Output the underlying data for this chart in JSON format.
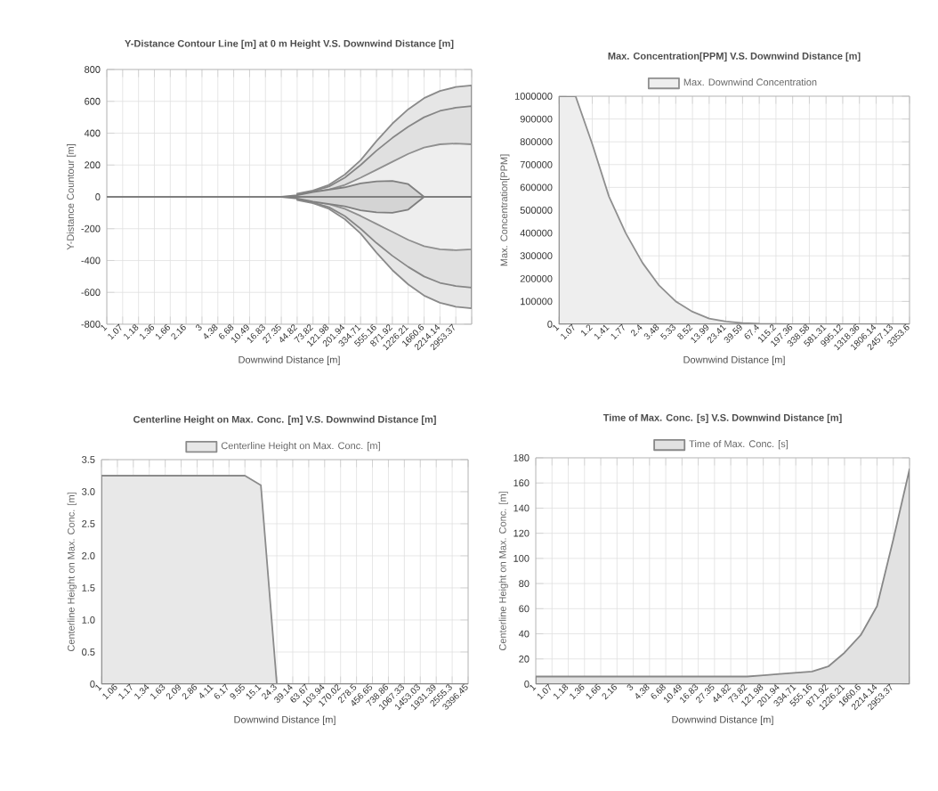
{
  "chart_data": [
    {
      "type": "area",
      "title": "Y-Distance Contour Line [m] at 0 m Height V.S. Downwind Distance [m]",
      "xlabel": "Downwind Distance [m]",
      "ylabel": "Y-Distance Countour [m]",
      "categories": [
        "1",
        "1.07",
        "1.18",
        "1.36",
        "1.66",
        "2.16",
        "3",
        "4.38",
        "6.68",
        "10.49",
        "16.83",
        "27.35",
        "44.82",
        "73.82",
        "121.98",
        "201.94",
        "334.71",
        "555.16",
        "871.92",
        "1226.21",
        "1660.6",
        "2214.14",
        "2953.37",
        null
      ],
      "series": [
        {
          "color": "#e6e6e6",
          "values": [
            null,
            null,
            null,
            null,
            null,
            null,
            null,
            null,
            null,
            null,
            null,
            null,
            20,
            40,
            75,
            140,
            230,
            350,
            460,
            550,
            620,
            665,
            690,
            700
          ]
        },
        {
          "color": "#e6e6e6",
          "values": [
            null,
            null,
            null,
            null,
            null,
            null,
            null,
            null,
            null,
            null,
            null,
            null,
            -20,
            -40,
            -75,
            -140,
            -230,
            -350,
            -460,
            -550,
            -620,
            -665,
            -690,
            -700
          ]
        },
        {
          "color": "#e0e0e0",
          "values": [
            null,
            null,
            null,
            null,
            null,
            null,
            null,
            null,
            null,
            null,
            null,
            null,
            15,
            35,
            65,
            120,
            200,
            290,
            370,
            440,
            500,
            540,
            560,
            570
          ]
        },
        {
          "color": "#e0e0e0",
          "values": [
            null,
            null,
            null,
            null,
            null,
            null,
            null,
            null,
            null,
            null,
            null,
            null,
            -15,
            -35,
            -65,
            -120,
            -200,
            -290,
            -370,
            -440,
            -500,
            -540,
            -560,
            -570
          ]
        },
        {
          "color": "#eeeeee",
          "values": [
            null,
            null,
            null,
            null,
            null,
            null,
            null,
            null,
            null,
            null,
            null,
            null,
            10,
            30,
            45,
            75,
            120,
            170,
            220,
            270,
            310,
            330,
            335,
            330
          ]
        },
        {
          "color": "#eeeeee",
          "values": [
            null,
            null,
            null,
            null,
            null,
            null,
            null,
            null,
            null,
            null,
            null,
            null,
            -10,
            -30,
            -45,
            -75,
            -120,
            -170,
            -220,
            -270,
            -310,
            -330,
            -335,
            -330
          ]
        },
        {
          "color": "#d4d4d4",
          "values": [
            null,
            null,
            null,
            null,
            null,
            null,
            null,
            null,
            null,
            null,
            null,
            0,
            10,
            30,
            45,
            60,
            85,
            97,
            100,
            80,
            0,
            null,
            null,
            null
          ]
        },
        {
          "color": "#d4d4d4",
          "values": [
            0,
            0,
            0,
            0,
            0,
            0,
            0,
            0,
            0,
            0,
            0,
            0,
            -10,
            -30,
            -45,
            -60,
            -85,
            -97,
            -100,
            -80,
            0,
            0,
            0,
            0
          ]
        }
      ],
      "ylim": [
        -800,
        800
      ],
      "yticks": [
        -800,
        -600,
        -400,
        -200,
        0,
        200,
        400,
        600,
        800
      ],
      "grid": true
    },
    {
      "type": "area",
      "title": "Max. Concentration[PPM] V.S. Downwind Distance [m]",
      "xlabel": "Downwind Distance [m]",
      "ylabel": "Max. Concentration[PPM]",
      "categories": [
        "1",
        "1.07",
        "1.2",
        "1.41",
        "1.77",
        "2.4",
        "3.48",
        "5.33",
        "8.52",
        "13.99",
        "23.41",
        "39.59",
        "67.4",
        "115.2",
        "197.36",
        "338.58",
        "581.31",
        "995.12",
        "1318.36",
        "1806.14",
        "2457.13",
        "3353.6"
      ],
      "series": [
        {
          "name": "Max. Downwind Concentration",
          "color": "#eeeeee",
          "values": [
            1000000,
            1000000,
            790000,
            560000,
            400000,
            270000,
            170000,
            100000,
            55000,
            25000,
            12000,
            5000,
            2000,
            1000,
            0,
            0,
            0,
            0,
            0,
            0,
            0,
            0
          ]
        }
      ],
      "ylim": [
        0,
        1000000
      ],
      "yticks": [
        0,
        100000,
        200000,
        300000,
        400000,
        500000,
        600000,
        700000,
        800000,
        900000,
        1000000
      ],
      "grid": true,
      "legend": "top"
    },
    {
      "type": "area",
      "title": "Centerline Height on Max. Conc. [m] V.S. Downwind Distance [m]",
      "xlabel": "Downwind Distance [m]",
      "ylabel": "Centerline Height on Max. Conc. [m]",
      "categories": [
        "1",
        "1.06",
        "1.17",
        "1.34",
        "1.63",
        "2.09",
        "2.86",
        "4.11",
        "6.17",
        "9.55",
        "15.1",
        "24.3",
        "39.14",
        "63.67",
        "103.94",
        "170.02",
        "278.5",
        "456.65",
        "738.86",
        "1067.33",
        "1453.03",
        "1931.39",
        "2555.3",
        "3396.45"
      ],
      "series": [
        {
          "name": "Centerline Height on Max. Conc. [m]",
          "color": "#e8e8e8",
          "values": [
            3.25,
            3.25,
            3.25,
            3.25,
            3.25,
            3.25,
            3.25,
            3.25,
            3.25,
            3.25,
            3.1,
            0,
            0,
            0,
            0,
            0,
            0,
            0,
            0,
            0,
            0,
            0,
            0,
            0
          ]
        }
      ],
      "ylim": [
        0,
        3.5
      ],
      "yticks": [
        {
          "value": 0,
          "label": "0"
        },
        {
          "value": 0.5,
          "label": "0.5"
        },
        {
          "value": 1,
          "label": "1.0"
        },
        {
          "value": 1.5,
          "label": "1.5"
        },
        {
          "value": 2,
          "label": "2.0"
        },
        {
          "value": 2.5,
          "label": "2.5"
        },
        {
          "value": 3,
          "label": "3.0"
        },
        {
          "value": 3.5,
          "label": "3.5"
        }
      ],
      "grid": true,
      "legend": "top"
    },
    {
      "type": "area",
      "title": "Time of Max. Conc. [s] V.S. Downwind Distance [m]",
      "xlabel": "Downwind Distance [m]",
      "ylabel": "Centerline Height on Max. Conc. [m]",
      "categories": [
        "1",
        "1.07",
        "1.18",
        "1.36",
        "1.66",
        "2.16",
        "3",
        "4.38",
        "6.68",
        "10.49",
        "16.83",
        "27.35",
        "44.82",
        "73.82",
        "121.98",
        "201.94",
        "334.71",
        "555.16",
        "871.92",
        "1226.21",
        "1660.6",
        "2214.14",
        "2953.37",
        null
      ],
      "series": [
        {
          "name": "Time of Max. Conc. [s]",
          "color": "#e2e2e2",
          "values": [
            6,
            6,
            6,
            6,
            6,
            6,
            6,
            6,
            6,
            6,
            6,
            6,
            6,
            6,
            7,
            8,
            9,
            10,
            14,
            25,
            39,
            62,
            115,
            171
          ]
        }
      ],
      "ylim": [
        0,
        180
      ],
      "yticks": [
        0,
        20,
        40,
        60,
        80,
        100,
        120,
        140,
        160,
        180
      ],
      "grid": true,
      "legend": "top"
    }
  ]
}
